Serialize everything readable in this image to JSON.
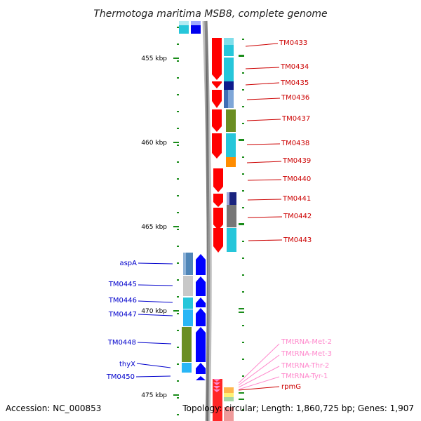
{
  "title": "Thermotoga maritima MSB8, complete genome",
  "scale_labels": [
    "455 kbp",
    "460 kbp",
    "465 kbp",
    "470 kbp",
    "475 kbp"
  ],
  "right_genes": [
    "TM0433",
    "TM0434",
    "TM0435",
    "TM0436",
    "TM0437",
    "TM0438",
    "TM0439",
    "TM0440",
    "TM0441",
    "TM0442",
    "TM0443"
  ],
  "left_genes": [
    "aspA",
    "TM0445",
    "TM0446",
    "TM0447",
    "TM0448",
    "thyX",
    "TM0450"
  ],
  "rna_genes": [
    "TMtRNA-Met-2",
    "TMtRNA-Met-3",
    "TMtRNA-Thr-2",
    "TMtRNA-Tyr-1"
  ],
  "rpm_gene": "rpmG",
  "colors": {
    "forward_strand": "#0000ff",
    "reverse_strand": "#ff0000",
    "right_label": "#cc0000",
    "left_label": "#0000cc",
    "rna_label": "#ff88cc"
  },
  "footer": {
    "accession": "Accession: NC_000853",
    "summary": "Topology: circular; Length: 1,860,725 bp; Genes: 1,907"
  }
}
